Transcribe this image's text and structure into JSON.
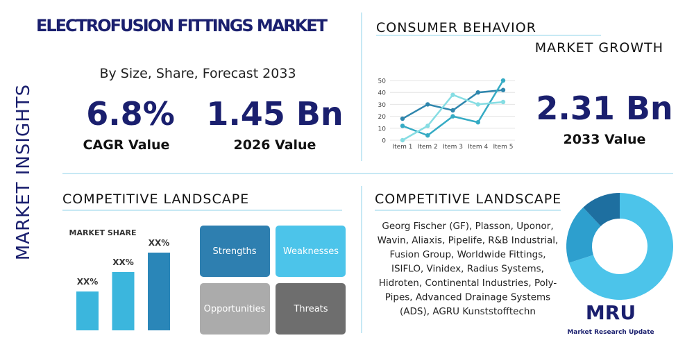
{
  "header": {
    "title": "ELECTROFUSION FITTINGS MARKET",
    "side_label": "MARKET INSIGHTS",
    "subtitle": "By Size, Share, Forecast 2033"
  },
  "stats": [
    {
      "value": "6.8%",
      "label": "CAGR Value"
    },
    {
      "value": "1.45 Bn",
      "label": "2026 Value"
    },
    {
      "value": "2.31 Bn",
      "label": "2033 Value"
    }
  ],
  "sections": {
    "consumer": "CONSUMER BEHAVIOR",
    "growth": "MARKET GROWTH",
    "competitive_left": "COMPETITIVE LANDSCAPE",
    "competitive_right": "COMPETITIVE LANDSCAPE"
  },
  "swot": [
    "Strengths",
    "Weaknesses",
    "Opportunities",
    "Threats"
  ],
  "companies": [
    "Georg Fischer (GF), Plasson, Uponor,",
    "Wavin, Aliaxis, Pipelife, R&B Industrial,",
    "Fusion Group, Worldwide Fittings,",
    "ISIFLO, Vinidex, Radius Systems,",
    "Hidroten, Continental Industries, Poly-",
    "Pipes, Advanced Drainage Systems",
    "(ADS), AGRU Kunststofftechn"
  ],
  "logo": {
    "mark": "MRU",
    "name": "Market Research Update"
  },
  "chart_data": [
    {
      "type": "line",
      "categories": [
        "Item 1",
        "Item 2",
        "Item 3",
        "Item 4",
        "Item 5"
      ],
      "ylim": [
        0,
        50
      ],
      "yticks": [
        0,
        10,
        20,
        30,
        40,
        50
      ],
      "series": [
        {
          "color": "#2f86ad",
          "values": [
            18,
            30,
            25,
            40,
            42
          ]
        },
        {
          "color": "#35abc4",
          "values": [
            12,
            4,
            20,
            15,
            50
          ]
        },
        {
          "color": "#86dde3",
          "values": [
            0,
            12,
            38,
            30,
            32
          ]
        }
      ]
    },
    {
      "type": "bar",
      "title": "MARKET SHARE",
      "values": [
        20,
        30,
        40
      ],
      "value_labels": [
        "XX%",
        "XX%",
        "XX%"
      ],
      "colors": [
        "#3bb6dd",
        "#3bb6dd",
        "#2a86b8"
      ]
    },
    {
      "type": "pie",
      "values": [
        70,
        18,
        12
      ],
      "colors": [
        "#4cc4ea",
        "#2d9fce",
        "#1e6fa0"
      ]
    }
  ]
}
